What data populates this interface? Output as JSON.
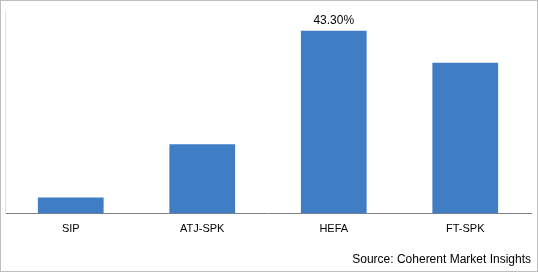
{
  "chart_data": {
    "type": "bar",
    "categories": [
      "SIP",
      "ATJ-SPK",
      "HEFA",
      "FT-SPK"
    ],
    "values": [
      3.8,
      16.4,
      43.3,
      35.7
    ],
    "value_labels": [
      null,
      null,
      "43.30%",
      null
    ],
    "data_labels": true,
    "color": "#3f7dc4",
    "ylim": [
      0,
      48
    ],
    "tick_labels": "x",
    "grid": false,
    "source": "Source: Coherent Market Insights"
  }
}
